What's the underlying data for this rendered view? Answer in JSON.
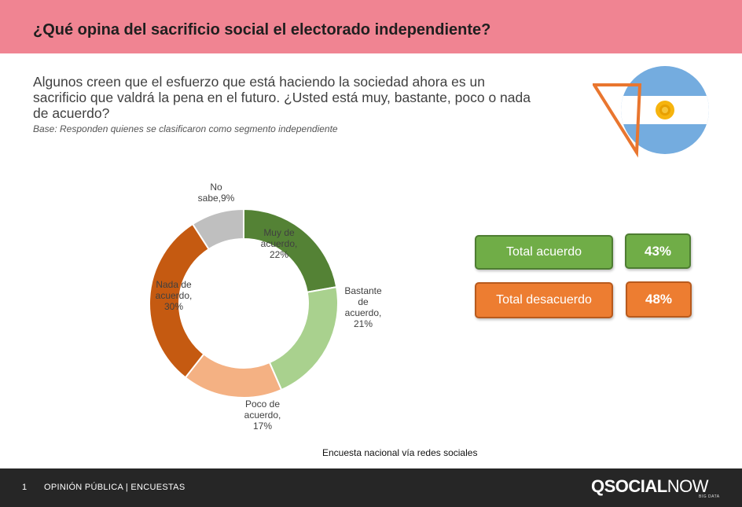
{
  "header": {
    "title": "¿Qué opina del sacrificio social el electorado independiente?"
  },
  "question": "Algunos creen que el esfuerzo que está haciendo la sociedad ahora es un sacrificio que valdrá la pena en el futuro. ¿Usted está muy, bastante, poco o nada de acuerdo?",
  "base": "Base: Responden quienes se clasificaron como segmento independiente",
  "chart_data": {
    "type": "pie",
    "donut": true,
    "categories": [
      "Muy de acuerdo",
      "Bastante de acuerdo",
      "Poco de acuerdo",
      "Nada de acuerdo",
      "No sabe"
    ],
    "values": [
      22,
      21,
      17,
      30,
      9
    ],
    "colors": [
      "#548235",
      "#a9d18e",
      "#f4b183",
      "#c55a11",
      "#bfbfbf"
    ],
    "data_labels": [
      [
        "Muy de",
        "acuerdo,",
        "22%"
      ],
      [
        "Bastante",
        "de",
        "acuerdo,",
        "21%"
      ],
      [
        "Poco de",
        "acuerdo,",
        "17%"
      ],
      [
        "Nada de",
        "acuerdo,",
        "30%"
      ],
      [
        "No",
        "sabe,9%"
      ]
    ]
  },
  "summary": {
    "agree": {
      "label": "Total acuerdo",
      "value": "43%",
      "color": "#70ad47"
    },
    "disagree": {
      "label": "Total desacuerdo",
      "value": "48%",
      "color": "#ed7d31"
    }
  },
  "source": "Encuesta nacional vía redes sociales",
  "footer": {
    "page_number": "1",
    "section": "OPINIÓN PÚBLICA | ENCUESTAS",
    "brand_bold": "QSOCIAL",
    "brand_light": "NOW",
    "brand_sub": "BIG DATA"
  },
  "flag": {
    "icon": "argentina-flag-icon",
    "colors": [
      "#74acdf",
      "#ffffff",
      "#f6b40e"
    ]
  }
}
